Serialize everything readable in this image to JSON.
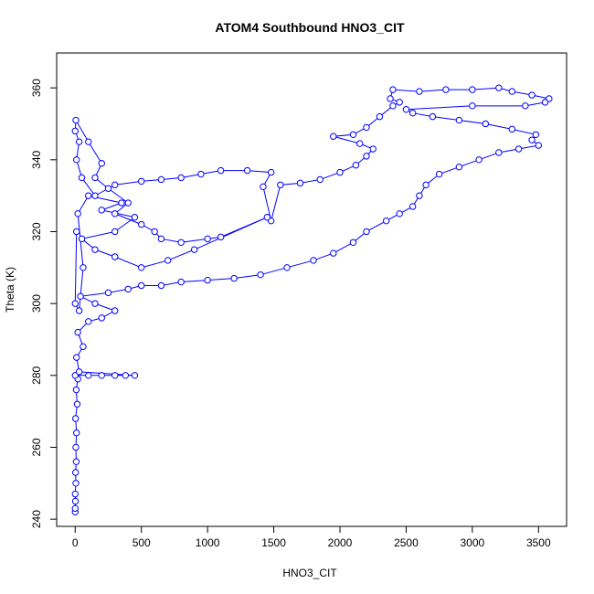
{
  "chart_data": {
    "type": "scatter",
    "title": "ATOM4 Southbound HNO3_CIT",
    "xlabel": "HNO3_CIT",
    "ylabel": "Theta (K)",
    "color": "#0000ff",
    "connect": true,
    "xlim": [
      -140,
      3712
    ],
    "ylim": [
      238,
      369.7
    ],
    "xticks": [
      0,
      500,
      1000,
      1500,
      2000,
      2500,
      3000,
      3500
    ],
    "yticks": [
      240,
      260,
      280,
      300,
      320,
      340,
      360
    ],
    "x": [
      0,
      0,
      2,
      0,
      5,
      3,
      8,
      5,
      10,
      3,
      15,
      8,
      20,
      0,
      100,
      200,
      300,
      380,
      450,
      30,
      10,
      60,
      20,
      100,
      200,
      300,
      150,
      40,
      250,
      400,
      500,
      650,
      800,
      1000,
      1200,
      1400,
      1600,
      1800,
      1950,
      2100,
      2200,
      2350,
      2450,
      2550,
      2600,
      2650,
      2750,
      2900,
      3050,
      3200,
      3350,
      3500,
      3450,
      3480,
      3300,
      3100,
      2900,
      2700,
      2550,
      2500,
      3000,
      3400,
      3550,
      3580,
      3450,
      3300,
      3200,
      3000,
      2800,
      2600,
      2400,
      2380,
      2450,
      2400,
      2300,
      2200,
      2100,
      1950,
      2150,
      2250,
      2200,
      2120,
      2000,
      1850,
      1700,
      1550,
      1480,
      1420,
      1480,
      1300,
      1100,
      950,
      800,
      650,
      500,
      300,
      150,
      50,
      10,
      30,
      0,
      5,
      100,
      200,
      150,
      250,
      400,
      300,
      500,
      600,
      650,
      800,
      1000,
      1100,
      1450,
      900,
      700,
      500,
      300,
      150,
      50,
      300,
      450,
      200,
      350,
      100,
      20,
      60,
      30,
      0,
      10
    ],
    "y": [
      242,
      243,
      245,
      247,
      250,
      253,
      256,
      260,
      264,
      268,
      272,
      276,
      279,
      280,
      280,
      280,
      280,
      280,
      280,
      281,
      285,
      288,
      292,
      295,
      296,
      298,
      300,
      302,
      303,
      304,
      305,
      305,
      306,
      306.5,
      307,
      308,
      310,
      312,
      314,
      317,
      320,
      323,
      325,
      327,
      330,
      333,
      336,
      338,
      340,
      342,
      343,
      344,
      345.5,
      347,
      348.5,
      350,
      351,
      352,
      353,
      354,
      355,
      355,
      356,
      357,
      358,
      359,
      360,
      359.5,
      359.5,
      359,
      359.5,
      357,
      356,
      355,
      352,
      349,
      347,
      346.5,
      344.5,
      343,
      341,
      338.5,
      336.5,
      334.5,
      333.5,
      333,
      323,
      332.5,
      336.5,
      337,
      337,
      336,
      335,
      334.5,
      334,
      333,
      330,
      335,
      340,
      345,
      348,
      351,
      345,
      339,
      335,
      332,
      328,
      325,
      322,
      320,
      318,
      317,
      318,
      318.5,
      324,
      315,
      312,
      310,
      313,
      315,
      318,
      320,
      324,
      326,
      328,
      330,
      325,
      310,
      298,
      300,
      320
    ]
  }
}
